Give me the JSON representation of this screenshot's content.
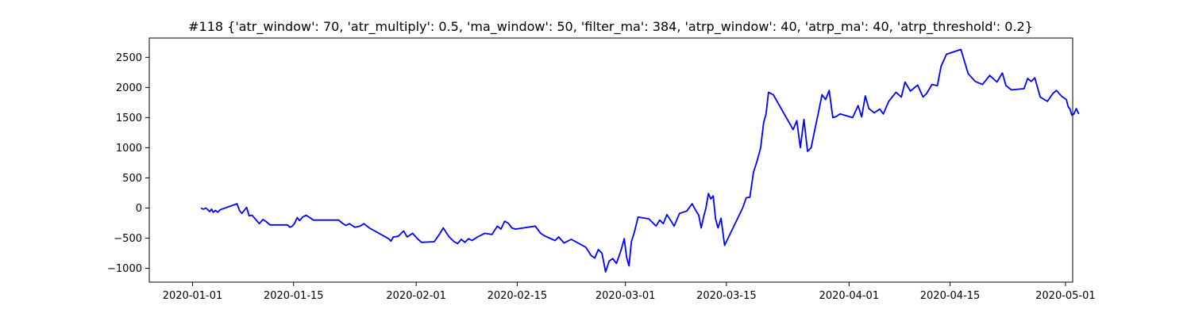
{
  "chart_data": {
    "type": "line",
    "title": "#118 {'atr_window': 70, 'atr_multiply': 0.5, 'ma_window': 50, 'filter_ma': 384, 'atrp_window': 40, 'atrp_ma': 40, 'atrp_threshold': 0.2}",
    "xlabel": "",
    "ylabel": "",
    "xlim": [
      "2019-12-26",
      "2020-05-02"
    ],
    "ylim": [
      -1230,
      2820
    ],
    "x_ticks": [
      "2020-01-01",
      "2020-01-15",
      "2020-02-01",
      "2020-02-15",
      "2020-03-01",
      "2020-03-15",
      "2020-04-01",
      "2020-04-15",
      "2020-05-01"
    ],
    "y_ticks": [
      -1000,
      -500,
      0,
      500,
      1000,
      1500,
      2000,
      2500
    ],
    "grid": false,
    "line_color": "#0000ff",
    "series": [
      {
        "values": [
          [
            "2020-01-02",
            0
          ],
          [
            "2020-01-02",
            -20
          ],
          [
            "2020-01-02",
            0
          ],
          [
            "2020-01-03",
            -30
          ],
          [
            "2020-01-03",
            -60
          ],
          [
            "2020-01-03",
            -20
          ],
          [
            "2020-01-03",
            -70
          ],
          [
            "2020-01-04",
            -40
          ],
          [
            "2020-01-04",
            -70
          ],
          [
            "2020-01-04",
            -30
          ],
          [
            "2020-01-07",
            70
          ],
          [
            "2020-01-07",
            -40
          ],
          [
            "2020-01-07",
            -90
          ],
          [
            "2020-01-08",
            -40
          ],
          [
            "2020-01-08",
            10
          ],
          [
            "2020-01-08",
            -130
          ],
          [
            "2020-01-09",
            -120
          ],
          [
            "2020-01-09",
            -190
          ],
          [
            "2020-01-10",
            -260
          ],
          [
            "2020-01-10",
            -190
          ],
          [
            "2020-01-11",
            -230
          ],
          [
            "2020-01-11",
            -280
          ],
          [
            "2020-01-13",
            -280
          ],
          [
            "2020-01-14",
            -280
          ],
          [
            "2020-01-14",
            -320
          ],
          [
            "2020-01-14",
            -300
          ],
          [
            "2020-01-15",
            -250
          ],
          [
            "2020-01-15",
            -160
          ],
          [
            "2020-01-15",
            -210
          ],
          [
            "2020-01-16",
            -150
          ],
          [
            "2020-01-16",
            -120
          ],
          [
            "2020-01-17",
            -160
          ],
          [
            "2020-01-17",
            -200
          ],
          [
            "2020-01-20",
            -200
          ],
          [
            "2020-01-21",
            -200
          ],
          [
            "2020-01-21",
            -250
          ],
          [
            "2020-01-22",
            -290
          ],
          [
            "2020-01-22",
            -260
          ],
          [
            "2020-01-23",
            -320
          ],
          [
            "2020-01-24",
            -300
          ],
          [
            "2020-01-24",
            -260
          ],
          [
            "2020-01-25",
            -330
          ],
          [
            "2020-01-28",
            -510
          ],
          [
            "2020-01-28",
            -550
          ],
          [
            "2020-01-28",
            -480
          ],
          [
            "2020-01-29",
            -470
          ],
          [
            "2020-01-30",
            -380
          ],
          [
            "2020-01-30",
            -480
          ],
          [
            "2020-01-31",
            -420
          ],
          [
            "2020-02-01",
            -520
          ],
          [
            "2020-02-01",
            -570
          ],
          [
            "2020-02-03",
            -560
          ],
          [
            "2020-02-04",
            -430
          ],
          [
            "2020-02-04",
            -330
          ],
          [
            "2020-02-05",
            -470
          ],
          [
            "2020-02-06",
            -560
          ],
          [
            "2020-02-06",
            -590
          ],
          [
            "2020-02-07",
            -520
          ],
          [
            "2020-02-07",
            -570
          ],
          [
            "2020-02-08",
            -510
          ],
          [
            "2020-02-08",
            -540
          ],
          [
            "2020-02-09",
            -480
          ],
          [
            "2020-02-10",
            -420
          ],
          [
            "2020-02-11",
            -440
          ],
          [
            "2020-02-12",
            -300
          ],
          [
            "2020-02-12",
            -350
          ],
          [
            "2020-02-13",
            -220
          ],
          [
            "2020-02-13",
            -250
          ],
          [
            "2020-02-14",
            -330
          ],
          [
            "2020-02-14",
            -350
          ],
          [
            "2020-02-17",
            -300
          ],
          [
            "2020-02-18",
            -420
          ],
          [
            "2020-02-18",
            -460
          ],
          [
            "2020-02-19",
            -500
          ],
          [
            "2020-02-20",
            -540
          ],
          [
            "2020-02-20",
            -480
          ],
          [
            "2020-02-21",
            -580
          ],
          [
            "2020-02-22",
            -520
          ],
          [
            "2020-02-24",
            -650
          ],
          [
            "2020-02-25",
            -790
          ],
          [
            "2020-02-25",
            -830
          ],
          [
            "2020-02-26",
            -690
          ],
          [
            "2020-02-26",
            -750
          ],
          [
            "2020-02-27",
            -1060
          ],
          [
            "2020-02-27",
            -880
          ],
          [
            "2020-02-28",
            -840
          ],
          [
            "2020-02-28",
            -920
          ],
          [
            "2020-02-29",
            -780
          ],
          [
            "2020-02-29",
            -660
          ],
          [
            "2020-02-29",
            -510
          ],
          [
            "2020-03-01",
            -820
          ],
          [
            "2020-03-01",
            -960
          ],
          [
            "2020-03-01",
            -560
          ],
          [
            "2020-03-02",
            -400
          ],
          [
            "2020-03-02",
            -150
          ],
          [
            "2020-03-04",
            -180
          ],
          [
            "2020-03-04",
            -240
          ],
          [
            "2020-03-05",
            -300
          ],
          [
            "2020-03-05",
            -200
          ],
          [
            "2020-03-06",
            -260
          ],
          [
            "2020-03-06",
            -110
          ],
          [
            "2020-03-07",
            -200
          ],
          [
            "2020-03-07",
            -300
          ],
          [
            "2020-03-08",
            -90
          ],
          [
            "2020-03-09",
            -50
          ],
          [
            "2020-03-10",
            70
          ],
          [
            "2020-03-10",
            -40
          ],
          [
            "2020-03-11",
            -120
          ],
          [
            "2020-03-11",
            -330
          ],
          [
            "2020-03-11",
            -150
          ],
          [
            "2020-03-12",
            0
          ],
          [
            "2020-03-12",
            240
          ],
          [
            "2020-03-12",
            150
          ],
          [
            "2020-03-13",
            200
          ],
          [
            "2020-03-13",
            -180
          ],
          [
            "2020-03-13",
            -330
          ],
          [
            "2020-03-14",
            -170
          ],
          [
            "2020-03-14",
            -620
          ],
          [
            "2020-03-17",
            0
          ],
          [
            "2020-03-17",
            170
          ],
          [
            "2020-03-18",
            180
          ],
          [
            "2020-03-18",
            590
          ],
          [
            "2020-03-19",
            780
          ],
          [
            "2020-03-19",
            1000
          ],
          [
            "2020-03-20",
            1420
          ],
          [
            "2020-03-20",
            1560
          ],
          [
            "2020-03-20",
            1920
          ],
          [
            "2020-03-21",
            1880
          ],
          [
            "2020-03-24",
            1300
          ],
          [
            "2020-03-24",
            1450
          ],
          [
            "2020-03-25",
            1000
          ],
          [
            "2020-03-25",
            1470
          ],
          [
            "2020-03-26",
            940
          ],
          [
            "2020-03-26",
            1000
          ],
          [
            "2020-03-27",
            1300
          ],
          [
            "2020-03-27",
            1580
          ],
          [
            "2020-03-28",
            1880
          ],
          [
            "2020-03-28",
            1800
          ],
          [
            "2020-03-29",
            1950
          ],
          [
            "2020-03-29",
            1500
          ],
          [
            "2020-03-30",
            1520
          ],
          [
            "2020-03-30",
            1560
          ],
          [
            "2020-04-01",
            1500
          ],
          [
            "2020-04-02",
            1700
          ],
          [
            "2020-04-02",
            1510
          ],
          [
            "2020-04-03",
            1860
          ],
          [
            "2020-04-03",
            1650
          ],
          [
            "2020-04-04",
            1580
          ],
          [
            "2020-04-05",
            1640
          ],
          [
            "2020-04-05",
            1560
          ],
          [
            "2020-04-06",
            1770
          ],
          [
            "2020-04-07",
            1920
          ],
          [
            "2020-04-08",
            1840
          ],
          [
            "2020-04-08",
            2090
          ],
          [
            "2020-04-09",
            1940
          ],
          [
            "2020-04-10",
            2040
          ],
          [
            "2020-04-11",
            1840
          ],
          [
            "2020-04-11",
            1900
          ],
          [
            "2020-04-12",
            2050
          ],
          [
            "2020-04-13",
            2030
          ],
          [
            "2020-04-13",
            2350
          ],
          [
            "2020-04-14",
            2550
          ],
          [
            "2020-04-16",
            2630
          ],
          [
            "2020-04-17",
            2230
          ],
          [
            "2020-04-18",
            2100
          ],
          [
            "2020-04-19",
            2050
          ],
          [
            "2020-04-20",
            2200
          ],
          [
            "2020-04-21",
            2090
          ],
          [
            "2020-04-22",
            2240
          ],
          [
            "2020-04-22",
            2030
          ],
          [
            "2020-04-23",
            1960
          ],
          [
            "2020-04-25",
            1980
          ],
          [
            "2020-04-25",
            2150
          ],
          [
            "2020-04-26",
            2100
          ],
          [
            "2020-04-26",
            2160
          ],
          [
            "2020-04-27",
            1840
          ],
          [
            "2020-04-28",
            1770
          ],
          [
            "2020-04-29",
            1900
          ],
          [
            "2020-04-29",
            1950
          ],
          [
            "2020-04-30",
            1850
          ],
          [
            "2020-05-01",
            1800
          ],
          [
            "2020-05-01",
            1680
          ],
          [
            "2020-05-01",
            1640
          ],
          [
            "2020-05-01",
            1540
          ],
          [
            "2020-05-02",
            1560
          ],
          [
            "2020-05-02",
            1650
          ],
          [
            "2020-05-02",
            1560
          ]
        ]
      }
    ]
  }
}
